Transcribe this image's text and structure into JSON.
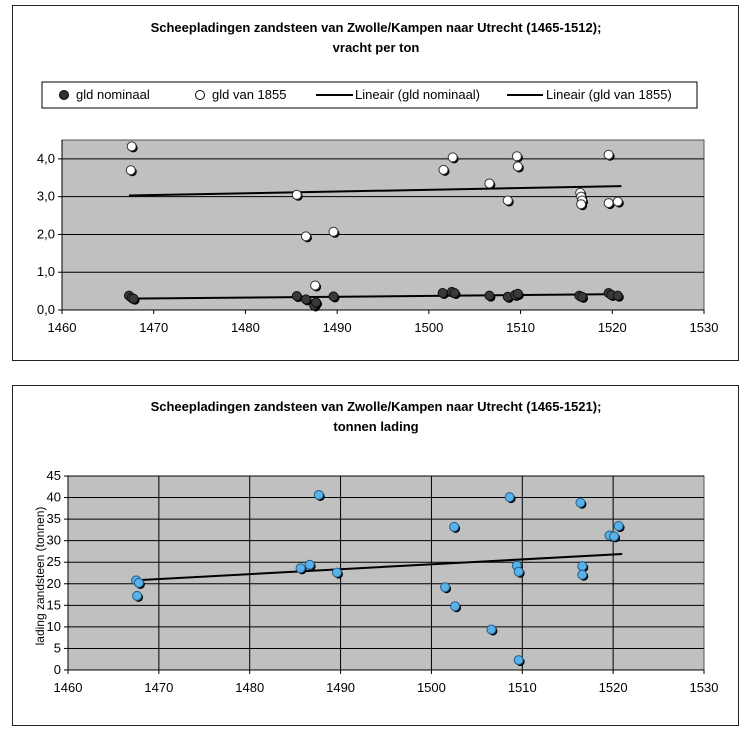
{
  "chart_data": [
    {
      "type": "scatter",
      "title": "Scheepladingen zandsteen van Zwolle/Kampen naar Utrecht (1465-1512);",
      "subtitle": "vracht per ton",
      "xlabel": "",
      "ylabel": "",
      "xlim": [
        1460,
        1530
      ],
      "ylim": [
        0,
        4.5
      ],
      "x_ticks": [
        "1460",
        "1470",
        "1480",
        "1490",
        "1500",
        "1510",
        "1520",
        "1530"
      ],
      "y_ticks": [
        "0,0",
        "1,0",
        "2,0",
        "3,0",
        "4,0"
      ],
      "grid": "horizontal",
      "legend_position": "top",
      "plot_background": "#c0c0c0",
      "series": [
        {
          "name": "gld nominaal",
          "marker": "filled-dark",
          "color": "#333333",
          "points": [
            [
              1467.3,
              0.38
            ],
            [
              1467.6,
              0.32
            ],
            [
              1467.8,
              0.3
            ],
            [
              1485.6,
              0.37
            ],
            [
              1486.6,
              0.28
            ],
            [
              1487.5,
              0.12
            ],
            [
              1487.7,
              0.2
            ],
            [
              1489.6,
              0.36
            ],
            [
              1501.5,
              0.45
            ],
            [
              1502.5,
              0.48
            ],
            [
              1502.8,
              0.45
            ],
            [
              1506.6,
              0.38
            ],
            [
              1508.6,
              0.35
            ],
            [
              1509.4,
              0.4
            ],
            [
              1509.7,
              0.43
            ],
            [
              1516.4,
              0.38
            ],
            [
              1516.7,
              0.35
            ],
            [
              1519.6,
              0.45
            ],
            [
              1519.9,
              0.4
            ],
            [
              1520.6,
              0.38
            ]
          ]
        },
        {
          "name": "gld van 1855",
          "marker": "open",
          "color": "#ffffff",
          "points": [
            [
              1467.6,
              4.33
            ],
            [
              1467.5,
              3.7
            ],
            [
              1485.6,
              3.05
            ],
            [
              1486.6,
              1.95
            ],
            [
              1487.6,
              0.65
            ],
            [
              1489.6,
              2.07
            ],
            [
              1501.6,
              3.71
            ],
            [
              1502.6,
              4.04
            ],
            [
              1506.6,
              3.35
            ],
            [
              1508.6,
              2.9
            ],
            [
              1509.6,
              4.07
            ],
            [
              1509.7,
              3.8
            ],
            [
              1516.5,
              3.1
            ],
            [
              1516.6,
              3.0
            ],
            [
              1516.7,
              2.9
            ],
            [
              1516.6,
              2.8
            ],
            [
              1519.6,
              4.11
            ],
            [
              1519.6,
              2.83
            ],
            [
              1520.6,
              2.87
            ]
          ]
        },
        {
          "name": "Lineair (gld nominaal)",
          "type": "line",
          "color": "#000000",
          "points": [
            [
              1467.3,
              0.3
            ],
            [
              1521.0,
              0.42
            ]
          ]
        },
        {
          "name": "Lineair (gld van 1855)",
          "type": "line",
          "color": "#000000",
          "points": [
            [
              1467.3,
              3.03
            ],
            [
              1521.0,
              3.28
            ]
          ]
        }
      ]
    },
    {
      "type": "scatter",
      "title": "Scheepladingen zandsteen van Zwolle/Kampen naar Utrecht (1465-1521);",
      "subtitle": "tonnen lading",
      "xlabel": "",
      "ylabel": "lading zandsteen (tonnen)",
      "xlim": [
        1460,
        1530
      ],
      "ylim": [
        0,
        45
      ],
      "x_ticks": [
        "1460",
        "1470",
        "1480",
        "1490",
        "1500",
        "1510",
        "1520",
        "1530"
      ],
      "y_ticks": [
        "0",
        "5",
        "10",
        "15",
        "20",
        "25",
        "30",
        "35",
        "40",
        "45"
      ],
      "grid": "both",
      "legend_position": "none",
      "plot_background": "#c0c0c0",
      "series": [
        {
          "marker": "filled-blue",
          "color": "#5bb0e8",
          "points": [
            [
              1467.5,
              20.8
            ],
            [
              1467.8,
              20.2
            ],
            [
              1467.6,
              17.2
            ],
            [
              1485.6,
              23.6
            ],
            [
              1486.6,
              24.4
            ],
            [
              1487.6,
              40.6
            ],
            [
              1489.6,
              22.6
            ],
            [
              1501.5,
              19.2
            ],
            [
              1502.5,
              33.2
            ],
            [
              1502.6,
              14.8
            ],
            [
              1506.6,
              9.4
            ],
            [
              1508.6,
              40.1
            ],
            [
              1509.4,
              24.2
            ],
            [
              1509.6,
              22.8
            ],
            [
              1509.6,
              2.3
            ],
            [
              1516.4,
              38.8
            ],
            [
              1516.6,
              24.1
            ],
            [
              1516.6,
              22.1
            ],
            [
              1519.6,
              31.2
            ],
            [
              1520.1,
              31.0
            ],
            [
              1520.6,
              33.4
            ]
          ]
        },
        {
          "name": "",
          "type": "line",
          "color": "#000000",
          "points": [
            [
              1467.3,
              20.8
            ],
            [
              1521.0,
              26.9
            ]
          ]
        }
      ]
    }
  ],
  "legend": {
    "items": [
      {
        "label": "gld nominaal",
        "icon": "filled-circle-icon"
      },
      {
        "label": "gld van 1855",
        "icon": "open-circle-icon"
      },
      {
        "label": "Lineair (gld nominaal)",
        "icon": "line-icon"
      },
      {
        "label": "Lineair (gld van 1855)",
        "icon": "line-icon"
      }
    ]
  }
}
